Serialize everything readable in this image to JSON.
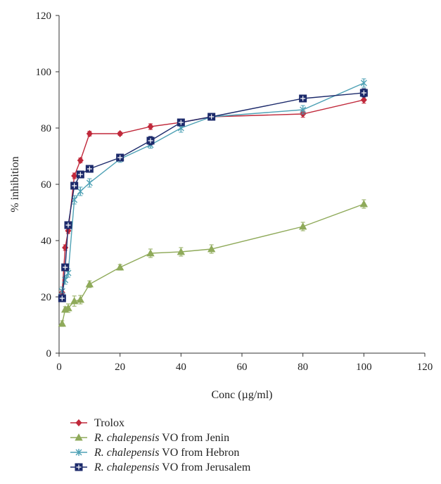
{
  "chart_data": {
    "type": "line",
    "title": "",
    "xlabel": "Conc (µg/ml)",
    "ylabel": "% inhibition",
    "xlim": [
      0,
      120
    ],
    "ylim": [
      0,
      120
    ],
    "x_ticks": [
      0,
      20,
      40,
      60,
      80,
      100,
      120
    ],
    "y_ticks": [
      0,
      20,
      40,
      60,
      80,
      100,
      120
    ],
    "grid": false,
    "legend_position": "bottom",
    "error_bars": true,
    "series": [
      {
        "name": "Trolox",
        "legend_italic": "",
        "legend_rest": "Trolox",
        "color": "#c0283a",
        "marker": "diamond",
        "points": [
          {
            "x": 1,
            "y": 21.5,
            "err": 1.0
          },
          {
            "x": 2,
            "y": 37.5,
            "err": 1.0
          },
          {
            "x": 3,
            "y": 43.5,
            "err": 1.0
          },
          {
            "x": 5,
            "y": 63.0,
            "err": 1.0
          },
          {
            "x": 7,
            "y": 68.5,
            "err": 0.8
          },
          {
            "x": 10,
            "y": 78.0,
            "err": 0.8
          },
          {
            "x": 20,
            "y": 78.0,
            "err": 0.6
          },
          {
            "x": 30,
            "y": 80.5,
            "err": 1.0
          },
          {
            "x": 40,
            "y": 82.0,
            "err": 1.0
          },
          {
            "x": 50,
            "y": 84.0,
            "err": 0.8
          },
          {
            "x": 80,
            "y": 85.0,
            "err": 1.2
          },
          {
            "x": 100,
            "y": 90.0,
            "err": 1.2
          }
        ]
      },
      {
        "name": "R. chalepensis VO from Jenin",
        "legend_italic": "R. chalepensis",
        "legend_rest": " VO from Jenin",
        "color": "#8faa5a",
        "marker": "triangle",
        "points": [
          {
            "x": 1,
            "y": 10.5,
            "err": 1.0
          },
          {
            "x": 2,
            "y": 15.5,
            "err": 1.0
          },
          {
            "x": 3,
            "y": 16.0,
            "err": 1.5
          },
          {
            "x": 5,
            "y": 18.5,
            "err": 1.8
          },
          {
            "x": 7,
            "y": 19.0,
            "err": 1.5
          },
          {
            "x": 10,
            "y": 24.5,
            "err": 1.2
          },
          {
            "x": 20,
            "y": 30.5,
            "err": 1.0
          },
          {
            "x": 30,
            "y": 35.5,
            "err": 1.5
          },
          {
            "x": 40,
            "y": 36.0,
            "err": 1.5
          },
          {
            "x": 50,
            "y": 37.0,
            "err": 1.5
          },
          {
            "x": 80,
            "y": 45.0,
            "err": 1.5
          },
          {
            "x": 100,
            "y": 53.0,
            "err": 1.5
          }
        ]
      },
      {
        "name": "R. chalepensis VO from Hebron",
        "legend_italic": "R. chalepensis",
        "legend_rest": " VO from Hebron",
        "color": "#4ea1b5",
        "marker": "star",
        "points": [
          {
            "x": 1,
            "y": 22.0,
            "err": 1.5
          },
          {
            "x": 2,
            "y": 26.0,
            "err": 1.5
          },
          {
            "x": 3,
            "y": 28.5,
            "err": 1.5
          },
          {
            "x": 5,
            "y": 54.5,
            "err": 1.5
          },
          {
            "x": 7,
            "y": 57.5,
            "err": 1.5
          },
          {
            "x": 10,
            "y": 60.5,
            "err": 1.5
          },
          {
            "x": 20,
            "y": 69.0,
            "err": 1.2
          },
          {
            "x": 30,
            "y": 74.0,
            "err": 1.2
          },
          {
            "x": 40,
            "y": 80.0,
            "err": 1.5
          },
          {
            "x": 50,
            "y": 84.0,
            "err": 1.0
          },
          {
            "x": 80,
            "y": 86.5,
            "err": 1.5
          },
          {
            "x": 100,
            "y": 96.0,
            "err": 1.5
          }
        ]
      },
      {
        "name": "R. chalepensis VO from Jerusalem",
        "legend_italic": "R. chalepensis",
        "legend_rest": " VO from Jerusalem",
        "color": "#1c2a6b",
        "marker": "square-plus",
        "points": [
          {
            "x": 1,
            "y": 19.5,
            "err": 1.0
          },
          {
            "x": 2,
            "y": 30.5,
            "err": 1.2
          },
          {
            "x": 3,
            "y": 45.5,
            "err": 1.2
          },
          {
            "x": 5,
            "y": 59.5,
            "err": 1.0
          },
          {
            "x": 7,
            "y": 63.5,
            "err": 1.0
          },
          {
            "x": 10,
            "y": 65.5,
            "err": 1.0
          },
          {
            "x": 20,
            "y": 69.5,
            "err": 1.0
          },
          {
            "x": 30,
            "y": 75.5,
            "err": 1.5
          },
          {
            "x": 40,
            "y": 82.0,
            "err": 1.0
          },
          {
            "x": 50,
            "y": 84.0,
            "err": 0.8
          },
          {
            "x": 80,
            "y": 90.5,
            "err": 0.8
          },
          {
            "x": 100,
            "y": 92.5,
            "err": 1.5
          }
        ]
      }
    ]
  }
}
